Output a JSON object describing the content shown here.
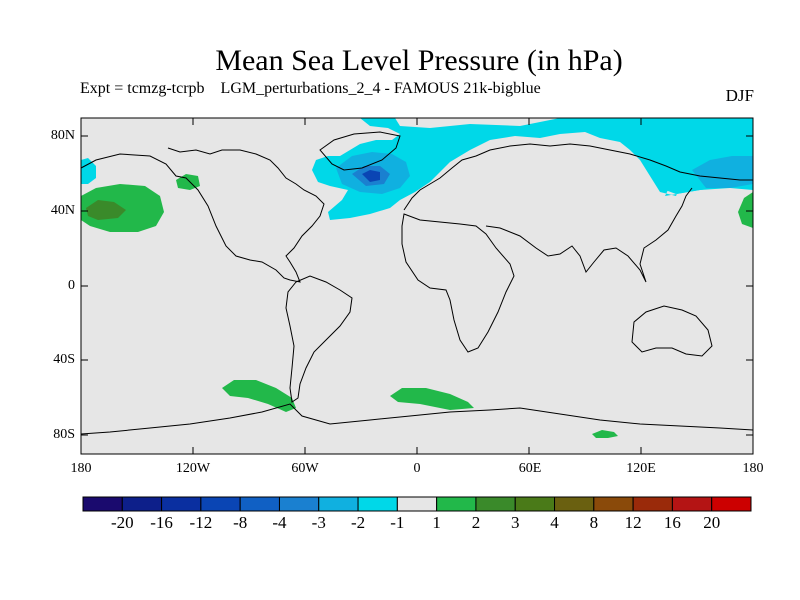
{
  "title": "Mean Sea Level Pressure (in hPa)",
  "subtitle": "Expt = tcmzg-tcrpb    LGM_perturbations_2_4 - FAMOUS 21k-bigblue",
  "season": "DJF",
  "y_ticks": [
    "80N",
    "40N",
    "0",
    "40S",
    "80S"
  ],
  "x_ticks": [
    "180",
    "120W",
    "60W",
    "0",
    "60E",
    "120E",
    "180"
  ],
  "colorbar": {
    "labels": [
      "-20",
      "-16",
      "-12",
      "-8",
      "-4",
      "-3",
      "-2",
      "-1",
      "1",
      "2",
      "3",
      "4",
      "8",
      "12",
      "16",
      "20"
    ],
    "colors": [
      "#1a0a6e",
      "#0d1f8a",
      "#0a2fa0",
      "#0a45b4",
      "#1060c4",
      "#1a80d0",
      "#10b0e0",
      "#00d8e8",
      "#e6e6e6",
      "#22b84a",
      "#3a8a2a",
      "#4a7a18",
      "#6a6010",
      "#8a4a0a",
      "#9a2a0a",
      "#b41414",
      "#cc0000"
    ]
  },
  "map": {
    "background_color": "#e6e6e6",
    "anomalies": [
      {
        "region": "North Atlantic / Greenland",
        "level": "-4"
      },
      {
        "region": "Arctic / Barents Sea",
        "level": "-2"
      },
      {
        "region": "NW Pacific / Kamchatka",
        "level": "-3"
      },
      {
        "region": "NE Pacific",
        "level": "2"
      },
      {
        "region": "NE Pacific core",
        "level": "3"
      },
      {
        "region": "Southern Ocean (Pacific sector)",
        "level": "2"
      },
      {
        "region": "Southern Ocean (Atlantic sector)",
        "level": "2"
      }
    ]
  }
}
